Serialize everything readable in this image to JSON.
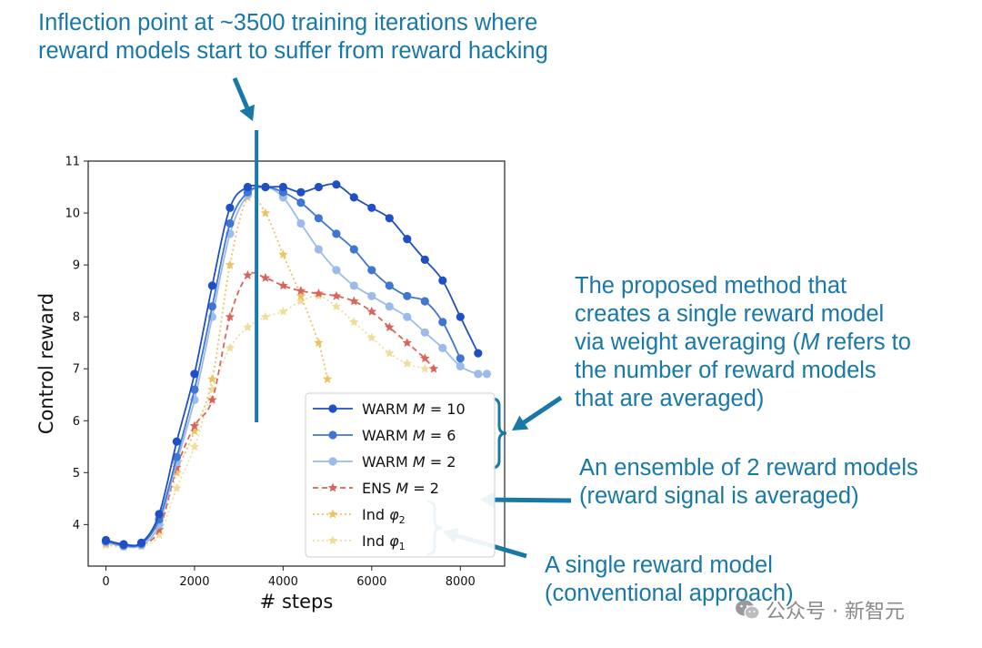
{
  "annotations": {
    "top": [
      "Inflection point at ~3500 training iterations where",
      "reward models start to suffer from reward hacking"
    ],
    "warm": {
      "line1": "The proposed method that",
      "line2": "creates a single reward model",
      "line3_pre": "via weight averaging (",
      "line3_m": "M",
      "line3_post": " refers to",
      "line4": "the number of reward models",
      "line5": "that are averaged)"
    },
    "ens": [
      "An ensemble of 2 reward models",
      "(reward signal is averaged)"
    ],
    "single": [
      "A single reward model",
      "(conventional approach)"
    ]
  },
  "watermark": "公众号 · 新智元",
  "colors": {
    "annotation": "#1878a8",
    "warm10": "#1f4fc4",
    "warm6": "#3f76d2",
    "warm2": "#9bbbea",
    "ens": "#d9655a",
    "ind2": "#ecc263",
    "ind1": "#f2dc9c"
  },
  "chart_data": {
    "type": "line",
    "xlabel": "# steps",
    "ylabel": "Control reward",
    "xlim": [
      -400,
      9000
    ],
    "ylim": [
      3.2,
      11
    ],
    "xticks": [
      0,
      2000,
      4000,
      6000,
      8000
    ],
    "yticks": [
      4,
      5,
      6,
      7,
      8,
      9,
      10,
      11
    ],
    "inflection_x": 3400,
    "legend_position": "lower-right",
    "series": [
      {
        "name": "WARM M = 10",
        "label": "WARM",
        "m": "M = 10",
        "marker": "circle",
        "style": "solid",
        "color": "#1f4fc4",
        "x": [
          0,
          400,
          800,
          1200,
          1600,
          2000,
          2400,
          2800,
          3200,
          3600,
          4000,
          4400,
          4800,
          5200,
          5600,
          6000,
          6400,
          6800,
          7200,
          7600,
          8000,
          8400
        ],
        "y": [
          3.7,
          3.62,
          3.65,
          4.2,
          5.6,
          6.9,
          8.6,
          10.1,
          10.5,
          10.5,
          10.5,
          10.4,
          10.5,
          10.55,
          10.3,
          10.1,
          9.9,
          9.5,
          9.1,
          8.7,
          8.0,
          7.3
        ]
      },
      {
        "name": "WARM M = 6",
        "label": "WARM",
        "m": "M = 6",
        "marker": "circle",
        "style": "solid",
        "color": "#3f76d2",
        "x": [
          0,
          400,
          800,
          1200,
          1600,
          2000,
          2400,
          2800,
          3200,
          3600,
          4000,
          4400,
          4800,
          5200,
          5600,
          6000,
          6400,
          6800,
          7200,
          7600,
          8000
        ],
        "y": [
          3.68,
          3.6,
          3.63,
          4.1,
          5.3,
          6.6,
          8.2,
          9.8,
          10.4,
          10.5,
          10.4,
          10.2,
          9.9,
          9.6,
          9.3,
          8.9,
          8.6,
          8.4,
          8.3,
          7.9,
          7.2
        ]
      },
      {
        "name": "WARM M = 2",
        "label": "WARM",
        "m": "M = 2",
        "marker": "circle",
        "style": "solid",
        "color": "#9bbbea",
        "x": [
          0,
          400,
          800,
          1200,
          1600,
          2000,
          2400,
          2800,
          3200,
          3600,
          4000,
          4400,
          4800,
          5200,
          5600,
          6000,
          6400,
          6800,
          7200,
          7600,
          8000,
          8400,
          8600
        ],
        "y": [
          3.66,
          3.58,
          3.6,
          4.0,
          5.2,
          6.4,
          8.0,
          9.6,
          10.35,
          10.5,
          10.3,
          9.8,
          9.3,
          8.9,
          8.6,
          8.4,
          8.2,
          8.0,
          7.7,
          7.4,
          7.05,
          6.9,
          6.9
        ]
      },
      {
        "name": "ENS M = 2",
        "label": "ENS",
        "m": "M = 2",
        "marker": "star",
        "style": "dashed",
        "color": "#d9655a",
        "x": [
          0,
          400,
          800,
          1200,
          1600,
          2000,
          2400,
          2800,
          3200,
          3600,
          4000,
          4400,
          4800,
          5200,
          5600,
          6000,
          6400,
          6800,
          7200,
          7400
        ],
        "y": [
          3.65,
          3.6,
          3.62,
          3.9,
          5.1,
          5.9,
          6.4,
          8.0,
          8.8,
          8.75,
          8.6,
          8.5,
          8.45,
          8.4,
          8.3,
          8.1,
          7.8,
          7.5,
          7.2,
          7.0
        ]
      },
      {
        "name": "Ind phi2",
        "label": "Ind",
        "sub": "2",
        "marker": "star",
        "style": "dotted",
        "color": "#ecc263",
        "x": [
          0,
          400,
          800,
          1200,
          1600,
          2000,
          2400,
          2800,
          3200,
          3600,
          4000,
          4400,
          4800,
          5000
        ],
        "y": [
          3.63,
          3.58,
          3.6,
          3.9,
          5.0,
          5.8,
          6.8,
          9.0,
          10.3,
          10.0,
          9.2,
          8.4,
          7.5,
          6.8
        ]
      },
      {
        "name": "Ind phi1",
        "label": "Ind",
        "sub": "1",
        "marker": "star",
        "style": "dotted",
        "color": "#f2dc9c",
        "x": [
          0,
          400,
          800,
          1200,
          1600,
          2000,
          2400,
          2800,
          3200,
          3600,
          4000,
          4400,
          4800,
          5200,
          5600,
          6000,
          6400,
          6800,
          7200
        ],
        "y": [
          3.6,
          3.56,
          3.58,
          3.8,
          4.7,
          5.5,
          6.6,
          7.4,
          7.8,
          8.0,
          8.1,
          8.3,
          8.4,
          8.2,
          7.9,
          7.6,
          7.3,
          7.1,
          7.0
        ]
      }
    ]
  }
}
